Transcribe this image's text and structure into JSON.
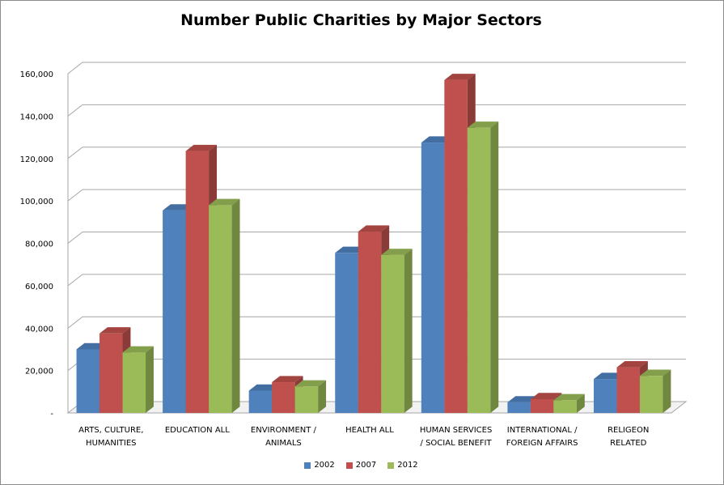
{
  "chart_data": {
    "type": "bar",
    "title": "Number Public Charities by Major Sectors",
    "categories": [
      [
        "ARTS, CULTURE,",
        "HUMANITIES"
      ],
      [
        "EDUCATION ALL"
      ],
      [
        "ENVIRONMENT  /",
        "ANIMALS"
      ],
      [
        "HEALTH ALL"
      ],
      [
        "HUMAN SERVICES",
        "/ SOCIAL BENEFIT"
      ],
      [
        "INTERNATIONAL /",
        "FOREIGN AFFAIRS"
      ],
      [
        "RELIGEON",
        "RELATED"
      ]
    ],
    "series": [
      {
        "name": "2002",
        "color": "#4f81bd",
        "values": [
          30000,
          95500,
          10500,
          75500,
          127500,
          5000,
          16000
        ]
      },
      {
        "name": "2007",
        "color": "#c0504d",
        "values": [
          37500,
          123500,
          14500,
          85500,
          157000,
          6500,
          21500
        ]
      },
      {
        "name": "2012",
        "color": "#9bbb59",
        "values": [
          28500,
          98000,
          12500,
          74500,
          134500,
          6000,
          17500
        ]
      }
    ],
    "ylim": [
      0,
      160000
    ],
    "yticks": [
      0,
      20000,
      40000,
      60000,
      80000,
      100000,
      120000,
      140000,
      160000
    ],
    "ytick_labels": [
      "-",
      "20,000",
      "40,000",
      "60,000",
      "80,000",
      "100,000",
      "120,000",
      "140,000",
      "160,000"
    ],
    "grid": true,
    "legend_position": "bottom"
  }
}
